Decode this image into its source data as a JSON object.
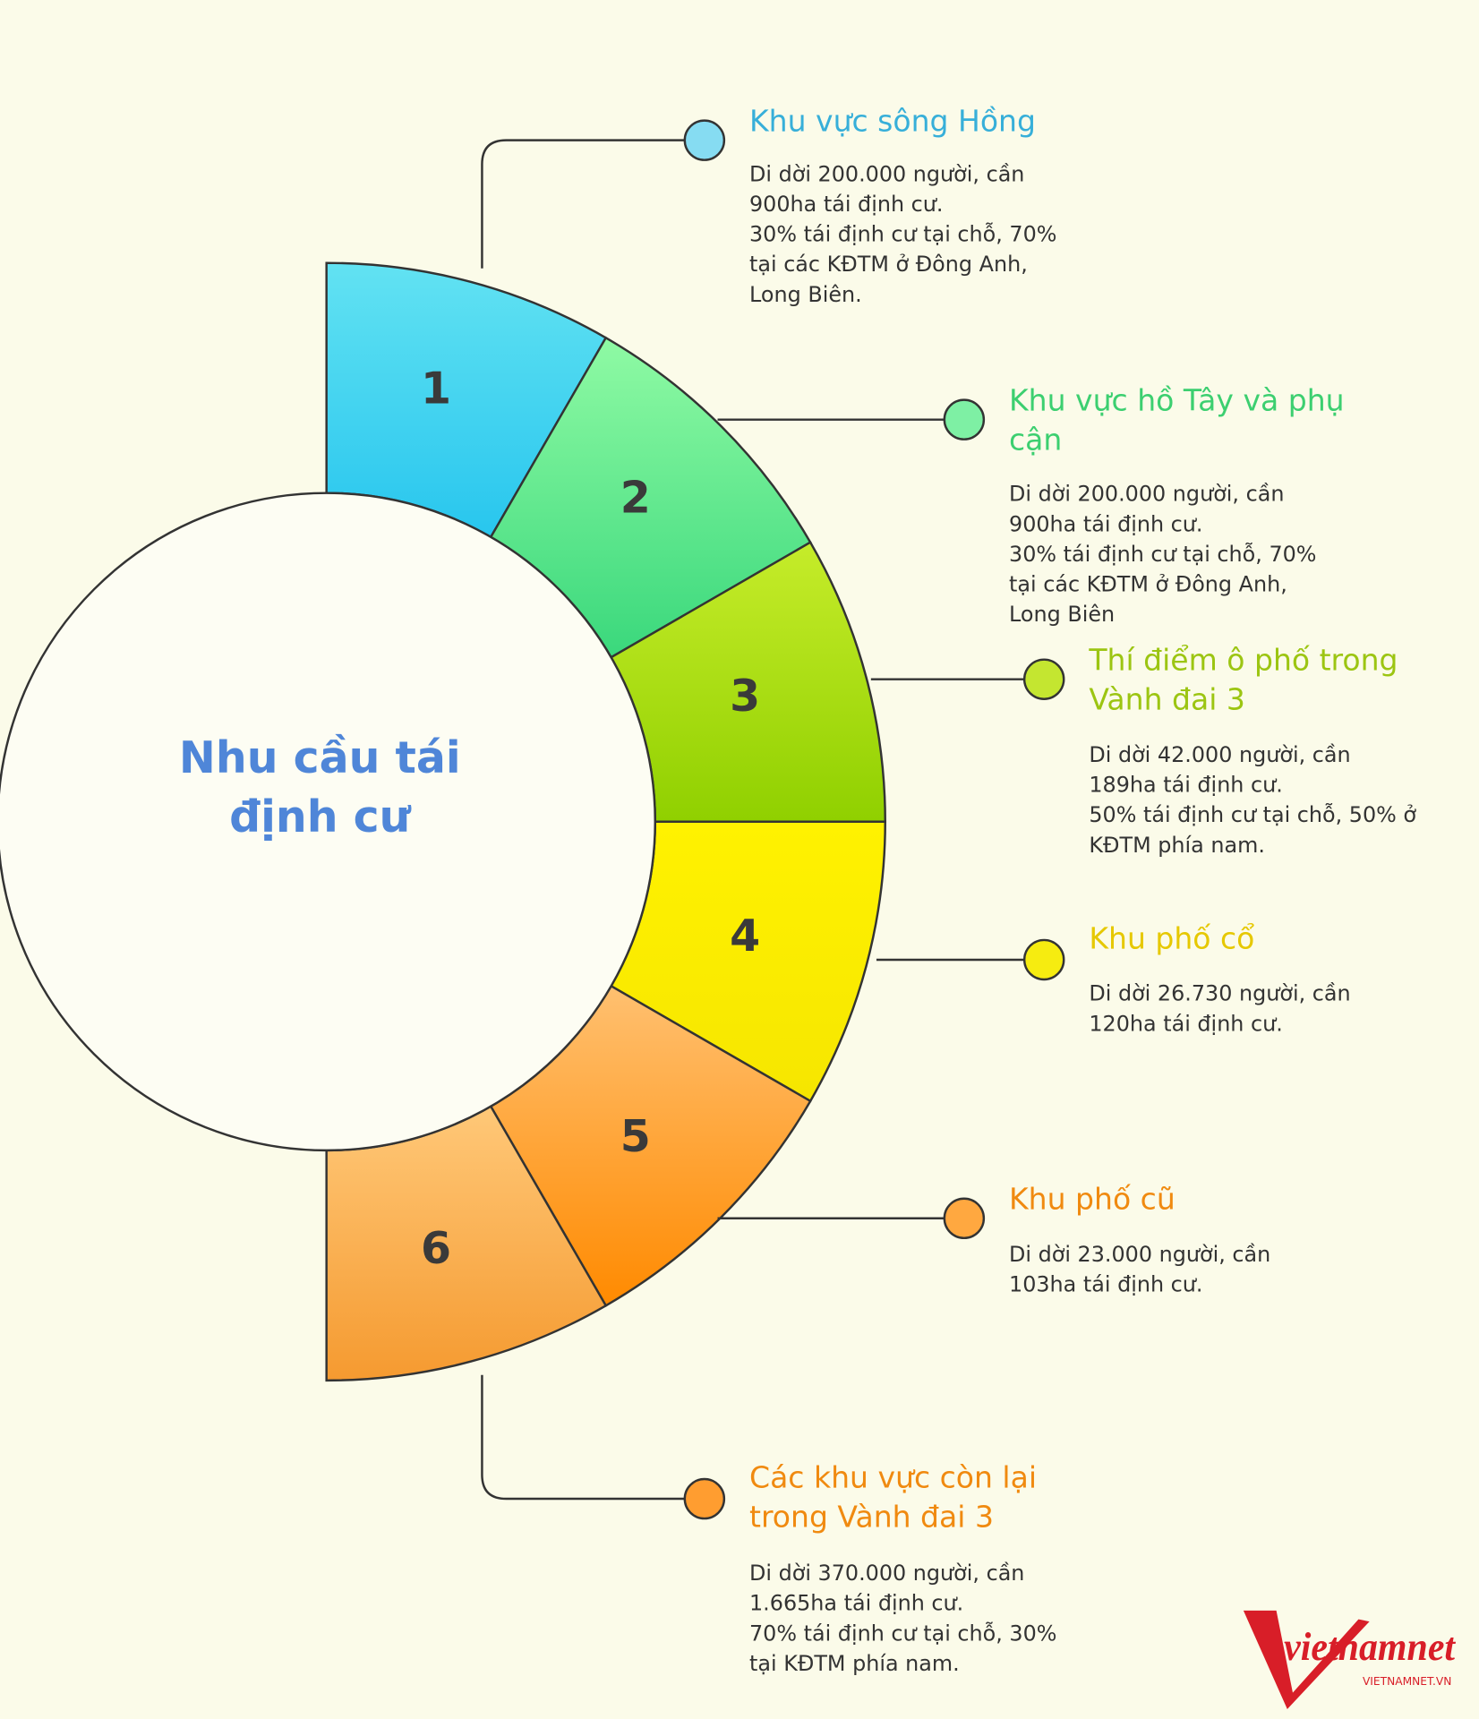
{
  "title": [
    "Nhu cầu tái",
    "định cư"
  ],
  "items": [
    {
      "number": "1",
      "title": [
        "Khu vực sông Hồng"
      ],
      "desc": [
        "Di dời 200.000 người, cần",
        "900ha tái định cư.",
        "30% tái định cư tại chỗ, 70%",
        "tại các KĐTM ở Đông Anh,",
        "Long Biên."
      ]
    },
    {
      "number": "2",
      "title": [
        "Khu vực hồ Tây và phụ",
        "cận"
      ],
      "desc": [
        "Di dời 200.000 người, cần",
        "900ha tái định cư.",
        "30% tái định cư tại chỗ, 70%",
        "tại các KĐTM ở Đông Anh,",
        "Long Biên"
      ]
    },
    {
      "number": "3",
      "title": [
        "Thí điểm ô phố trong",
        "Vành đai 3"
      ],
      "desc": [
        "Di dời 42.000 người, cần",
        "189ha tái định cư.",
        "50% tái định cư tại chỗ, 50% ở",
        "KĐTM phía nam."
      ]
    },
    {
      "number": "4",
      "title": [
        "Khu phố cổ"
      ],
      "desc": [
        "Di dời 26.730 người, cần",
        "120ha tái định cư."
      ]
    },
    {
      "number": "5",
      "title": [
        "Khu phố cũ"
      ],
      "desc": [
        "Di dời 23.000 người, cần",
        "103ha tái định cư."
      ]
    },
    {
      "number": "6",
      "title": [
        "Các khu vực còn lại",
        "trong Vành đai 3"
      ],
      "desc": [
        "Di dời 370.000 người, cần",
        "1.665ha tái định cư.",
        "70% tái định cư tại chỗ, 30%",
        "tại KĐTM phía nam."
      ]
    }
  ],
  "logo": {
    "name": "vietnamnet",
    "url": "VIETNAMNET.VN"
  }
}
